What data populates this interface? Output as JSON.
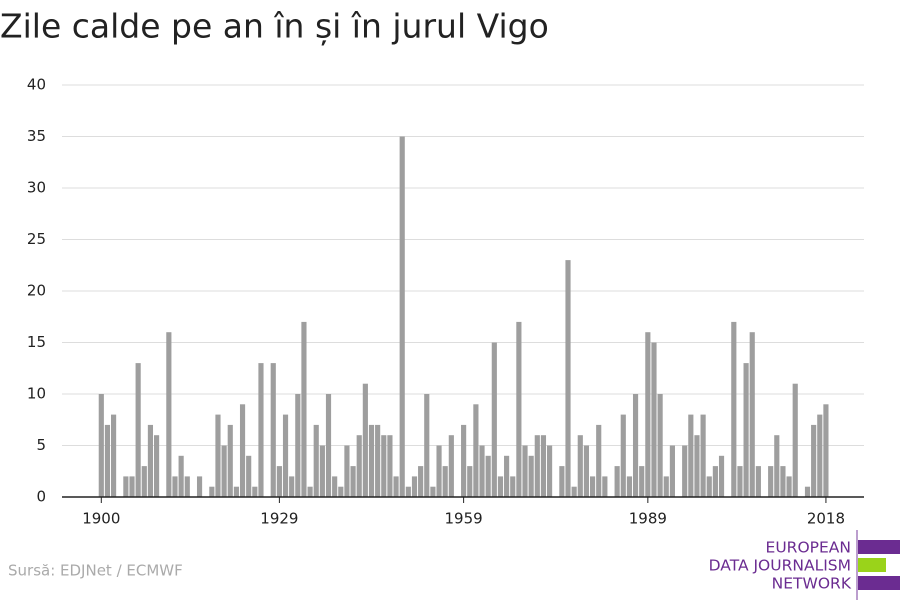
{
  "chart_data": {
    "type": "bar",
    "title": "Zile calde pe an în și în jurul Vigo",
    "source": "Sursă: EDJNet / ECMWF",
    "logo": [
      "EUROPEAN",
      "DATA JOURNALISM",
      "NETWORK"
    ],
    "color": "#9e9e9e",
    "x": [
      1900,
      1901,
      1902,
      1903,
      1904,
      1905,
      1906,
      1907,
      1908,
      1909,
      1910,
      1911,
      1912,
      1913,
      1914,
      1915,
      1916,
      1917,
      1918,
      1919,
      1920,
      1921,
      1922,
      1923,
      1924,
      1925,
      1926,
      1927,
      1928,
      1929,
      1930,
      1931,
      1932,
      1933,
      1934,
      1935,
      1936,
      1937,
      1938,
      1939,
      1940,
      1941,
      1942,
      1943,
      1944,
      1945,
      1946,
      1947,
      1948,
      1949,
      1950,
      1951,
      1952,
      1953,
      1954,
      1955,
      1956,
      1957,
      1958,
      1959,
      1960,
      1961,
      1962,
      1963,
      1964,
      1965,
      1966,
      1967,
      1968,
      1969,
      1970,
      1971,
      1972,
      1973,
      1974,
      1975,
      1976,
      1977,
      1978,
      1979,
      1980,
      1981,
      1982,
      1983,
      1984,
      1985,
      1986,
      1987,
      1988,
      1989,
      1990,
      1991,
      1992,
      1993,
      1994,
      1995,
      1996,
      1997,
      1998,
      1999,
      2000,
      2001,
      2002,
      2003,
      2004,
      2005,
      2006,
      2007,
      2008,
      2009,
      2010,
      2011,
      2012,
      2013,
      2014,
      2015,
      2016,
      2017,
      2018
    ],
    "values": [
      10,
      7,
      8,
      0,
      2,
      2,
      13,
      3,
      7,
      6,
      0,
      16,
      2,
      4,
      2,
      0,
      2,
      0,
      1,
      8,
      5,
      7,
      1,
      9,
      4,
      1,
      13,
      0,
      13,
      3,
      8,
      2,
      10,
      17,
      1,
      7,
      5,
      10,
      2,
      1,
      5,
      3,
      6,
      11,
      7,
      7,
      6,
      6,
      2,
      35,
      1,
      2,
      3,
      10,
      1,
      5,
      3,
      6,
      0,
      7,
      3,
      9,
      5,
      4,
      15,
      2,
      4,
      2,
      17,
      5,
      4,
      6,
      6,
      5,
      0,
      3,
      23,
      1,
      6,
      5,
      2,
      7,
      2,
      0,
      3,
      8,
      2,
      10,
      3,
      16,
      15,
      10,
      2,
      5,
      0,
      5,
      8,
      6,
      8,
      2,
      3,
      4,
      0,
      17,
      3,
      13,
      16,
      3,
      0,
      3,
      6,
      3,
      2,
      11,
      0,
      1,
      7,
      8,
      9
    ],
    "xlim": [
      1893.6,
      2024.2
    ],
    "xticks": [
      1900,
      1929,
      1959,
      1989,
      2018
    ],
    "ylim": [
      0,
      40
    ],
    "yticks": [
      0,
      5,
      10,
      15,
      20,
      25,
      30,
      35,
      40
    ],
    "grid": true
  }
}
